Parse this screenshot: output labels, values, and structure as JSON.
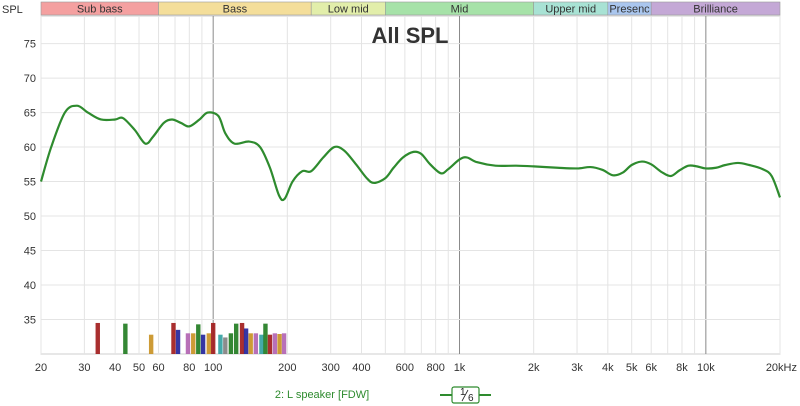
{
  "chart_data": {
    "type": "line",
    "title": "All SPL",
    "ylabel": "SPL",
    "xunit": "Hz",
    "xscale": "log",
    "xlim": [
      20,
      20000
    ],
    "ylim": [
      30,
      79
    ],
    "y_ticks": [
      35,
      40,
      45,
      50,
      55,
      60,
      65,
      70,
      75
    ],
    "x_ticks": [
      {
        "value": 20,
        "label": "20"
      },
      {
        "value": 30,
        "label": "30"
      },
      {
        "value": 40,
        "label": "40"
      },
      {
        "value": 50,
        "label": "50"
      },
      {
        "value": 60,
        "label": "60"
      },
      {
        "value": 80,
        "label": "80"
      },
      {
        "value": 100,
        "label": "100"
      },
      {
        "value": 200,
        "label": "200"
      },
      {
        "value": 300,
        "label": "300"
      },
      {
        "value": 400,
        "label": "400"
      },
      {
        "value": 600,
        "label": "600"
      },
      {
        "value": 800,
        "label": "800"
      },
      {
        "value": 1000,
        "label": "1k"
      },
      {
        "value": 2000,
        "label": "2k"
      },
      {
        "value": 3000,
        "label": "3k"
      },
      {
        "value": 4000,
        "label": "4k"
      },
      {
        "value": 5000,
        "label": "5k"
      },
      {
        "value": 6000,
        "label": "6k"
      },
      {
        "value": 8000,
        "label": "8k"
      },
      {
        "value": 10000,
        "label": "10k"
      },
      {
        "value": 20000,
        "label": "20kHz"
      }
    ],
    "bands": [
      {
        "label": "Sub bass",
        "from": 20,
        "to": 60,
        "color": "#f4a0a0"
      },
      {
        "label": "Bass",
        "from": 60,
        "to": 250,
        "color": "#f4de9a"
      },
      {
        "label": "Low mid",
        "from": 250,
        "to": 500,
        "color": "#e2eeaa"
      },
      {
        "label": "Mid",
        "from": 500,
        "to": 2000,
        "color": "#a6e2a8"
      },
      {
        "label": "Upper mid",
        "from": 2000,
        "to": 4000,
        "color": "#a8e2d4"
      },
      {
        "label": "Presenc",
        "from": 4000,
        "to": 6000,
        "color": "#aac6ee"
      },
      {
        "label": "Brilliance",
        "from": 6000,
        "to": 20000,
        "color": "#c4a8d6"
      }
    ],
    "series": [
      {
        "name": "2: L speaker [FDW]",
        "color": "#2e8b2e",
        "points": [
          [
            20,
            55
          ],
          [
            22,
            60
          ],
          [
            25,
            65
          ],
          [
            28,
            66
          ],
          [
            31,
            65
          ],
          [
            35,
            64
          ],
          [
            40,
            64
          ],
          [
            43,
            64.2
          ],
          [
            48,
            62.5
          ],
          [
            53,
            60.5
          ],
          [
            57,
            61.5
          ],
          [
            63,
            63.5
          ],
          [
            68,
            64
          ],
          [
            74,
            63.5
          ],
          [
            80,
            63
          ],
          [
            88,
            64
          ],
          [
            95,
            65
          ],
          [
            105,
            64.5
          ],
          [
            112,
            62
          ],
          [
            122,
            60.5
          ],
          [
            140,
            60.8
          ],
          [
            155,
            60
          ],
          [
            170,
            57
          ],
          [
            185,
            53
          ],
          [
            195,
            52.5
          ],
          [
            210,
            55
          ],
          [
            230,
            56.5
          ],
          [
            250,
            56.5
          ],
          [
            280,
            58.5
          ],
          [
            310,
            60
          ],
          [
            340,
            59.5
          ],
          [
            380,
            57.5
          ],
          [
            420,
            55.5
          ],
          [
            450,
            54.8
          ],
          [
            500,
            55.5
          ],
          [
            540,
            57
          ],
          [
            590,
            58.5
          ],
          [
            650,
            59.3
          ],
          [
            700,
            59
          ],
          [
            760,
            57.5
          ],
          [
            840,
            56.2
          ],
          [
            900,
            56.8
          ],
          [
            1000,
            58.2
          ],
          [
            1070,
            58.5
          ],
          [
            1180,
            57.8
          ],
          [
            1400,
            57.3
          ],
          [
            1700,
            57.3
          ],
          [
            2000,
            57.2
          ],
          [
            2500,
            57
          ],
          [
            3000,
            56.9
          ],
          [
            3400,
            57.1
          ],
          [
            3800,
            56.7
          ],
          [
            4200,
            55.9
          ],
          [
            4600,
            56.3
          ],
          [
            5000,
            57.4
          ],
          [
            5500,
            57.9
          ],
          [
            6000,
            57.5
          ],
          [
            6600,
            56.4
          ],
          [
            7200,
            55.8
          ],
          [
            7800,
            56.6
          ],
          [
            8500,
            57.3
          ],
          [
            9200,
            57.2
          ],
          [
            10000,
            56.9
          ],
          [
            11000,
            57
          ],
          [
            12000,
            57.4
          ],
          [
            13500,
            57.7
          ],
          [
            15000,
            57.4
          ],
          [
            17000,
            56.8
          ],
          [
            18500,
            55.8
          ],
          [
            20000,
            52.7
          ]
        ]
      }
    ],
    "markers": [
      {
        "f": 34,
        "h": 34.5,
        "color": "#a01818"
      },
      {
        "f": 44,
        "h": 34.4,
        "color": "#1e7a1e"
      },
      {
        "f": 56,
        "h": 32.8,
        "color": "#c89020"
      },
      {
        "f": 69,
        "h": 34.5,
        "color": "#a01818"
      },
      {
        "f": 72,
        "h": 33.5,
        "color": "#20209a"
      },
      {
        "f": 79,
        "h": 33,
        "color": "#b060b0"
      },
      {
        "f": 83,
        "h": 33,
        "color": "#c89020"
      },
      {
        "f": 87,
        "h": 34.3,
        "color": "#1e7a1e"
      },
      {
        "f": 91,
        "h": 32.8,
        "color": "#20209a"
      },
      {
        "f": 96,
        "h": 33,
        "color": "#c89020"
      },
      {
        "f": 100,
        "h": 34.5,
        "color": "#a01818"
      },
      {
        "f": 107,
        "h": 32.8,
        "color": "#30a0a0"
      },
      {
        "f": 112,
        "h": 32.4,
        "color": "#808080"
      },
      {
        "f": 118,
        "h": 33,
        "color": "#1e7a1e"
      },
      {
        "f": 124,
        "h": 34.4,
        "color": "#1e7a1e"
      },
      {
        "f": 131,
        "h": 34.5,
        "color": "#a01818"
      },
      {
        "f": 136,
        "h": 33.7,
        "color": "#20209a"
      },
      {
        "f": 142,
        "h": 33,
        "color": "#c89020"
      },
      {
        "f": 149,
        "h": 33,
        "color": "#b060b0"
      },
      {
        "f": 157,
        "h": 32.8,
        "color": "#30a0a0"
      },
      {
        "f": 163,
        "h": 34.4,
        "color": "#1e7a1e"
      },
      {
        "f": 170,
        "h": 32.8,
        "color": "#a01818"
      },
      {
        "f": 178,
        "h": 33,
        "color": "#b060b0"
      },
      {
        "f": 186,
        "h": 32.9,
        "color": "#c89020"
      },
      {
        "f": 194,
        "h": 33,
        "color": "#b060b0"
      }
    ]
  },
  "legend": {
    "series_label": "2: L speaker [FDW]",
    "smoothing_num": "1",
    "smoothing_den": "6"
  },
  "colors": {
    "curve": "#2e8b2e",
    "grid_minor": "#e4e4e4",
    "grid_major": "#8a8a8a"
  }
}
